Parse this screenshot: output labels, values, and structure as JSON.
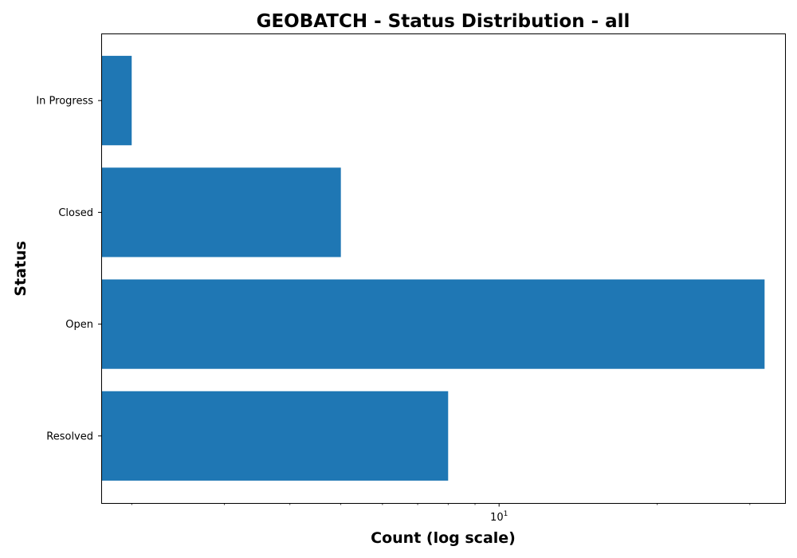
{
  "chart_data": {
    "type": "bar",
    "orientation": "horizontal",
    "title": "GEOBATCH - Status Distribution - all",
    "xlabel": "Count (log scale)",
    "ylabel": "Status",
    "x_scale": "log",
    "xlim": [
      1.75,
      35
    ],
    "x_major_ticks": [
      {
        "value": 10,
        "base": "10",
        "exponent": "1"
      }
    ],
    "x_minor_ticks": [
      2,
      3,
      4,
      5,
      6,
      7,
      8,
      9,
      20,
      30
    ],
    "categories": [
      "In Progress",
      "Closed",
      "Open",
      "Resolved"
    ],
    "values": [
      2,
      5,
      32,
      8
    ],
    "bar_color": "#1f77b4",
    "grid": false,
    "legend": "none"
  }
}
